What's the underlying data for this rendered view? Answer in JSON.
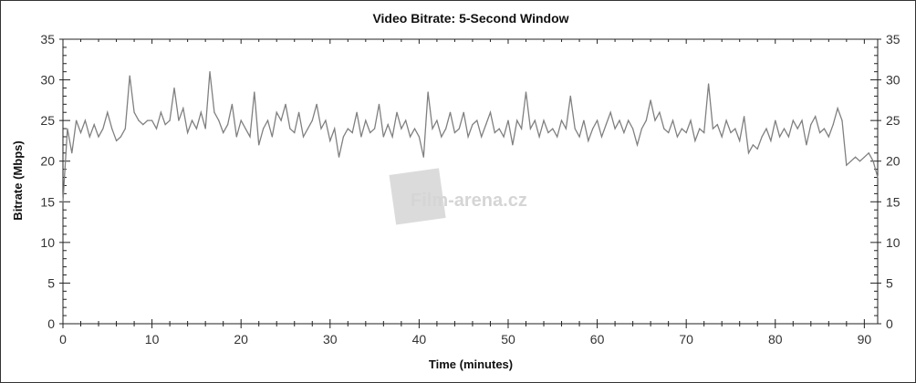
{
  "chart_data": {
    "type": "line",
    "title": "Video Bitrate: 5-Second Window",
    "xlabel": "Time (minutes)",
    "ylabel": "Bitrate (Mbps)",
    "xlim": [
      0,
      91.5
    ],
    "ylim": [
      0,
      35
    ],
    "x_ticks": [
      "0",
      "10",
      "20",
      "30",
      "40",
      "50",
      "60",
      "70",
      "80",
      "90"
    ],
    "y_ticks": [
      "0",
      "5",
      "10",
      "15",
      "20",
      "25",
      "30",
      "35"
    ],
    "right_axis_ticks": true,
    "grid": false,
    "line_color": "#808080",
    "watermark": "Film-arena.cz",
    "x_step": 0.5,
    "values": [
      15,
      24,
      21,
      25,
      23.5,
      25,
      23,
      24.5,
      23,
      24,
      26,
      24,
      22.5,
      23,
      24,
      30.5,
      26,
      25,
      24.5,
      25,
      25,
      24,
      26,
      24.5,
      25,
      29,
      25,
      26.5,
      23.5,
      25,
      24,
      26,
      24,
      31,
      26,
      25,
      23.5,
      24.5,
      27,
      23,
      25,
      24,
      23,
      28.5,
      22,
      24,
      25,
      23,
      26,
      25,
      27,
      24,
      23.5,
      26,
      23,
      24,
      25,
      27,
      24,
      25,
      22.5,
      24,
      20.5,
      23,
      24,
      23.5,
      26,
      23,
      25,
      23.5,
      24,
      27,
      23,
      24.5,
      23,
      26,
      24,
      25,
      23,
      24,
      23,
      20.5,
      28.5,
      24,
      25,
      23,
      24,
      26,
      23.5,
      24,
      26,
      23,
      24.5,
      25,
      23,
      24.5,
      26,
      23.5,
      24,
      23,
      25,
      22,
      25,
      24,
      28.5,
      24,
      25,
      23,
      25,
      23.5,
      24,
      23,
      25,
      24,
      28,
      24,
      23,
      25,
      22.5,
      24,
      25,
      23,
      24.5,
      26,
      24,
      25,
      23.5,
      25,
      24,
      22,
      24,
      25,
      27.5,
      25,
      26,
      24,
      23.5,
      25,
      23,
      24,
      23.5,
      25,
      22.5,
      24,
      23.5,
      29.5,
      24,
      24.5,
      23,
      25,
      23.5,
      24,
      22.5,
      25.5,
      21,
      22,
      21.5,
      23,
      24,
      22.5,
      25,
      23,
      24,
      23,
      25,
      24,
      25,
      22,
      24.5,
      25.5,
      23.5,
      24,
      23,
      24.5,
      26.5,
      25,
      19.5,
      20,
      20.5,
      20,
      20.5,
      21,
      20,
      18
    ]
  }
}
